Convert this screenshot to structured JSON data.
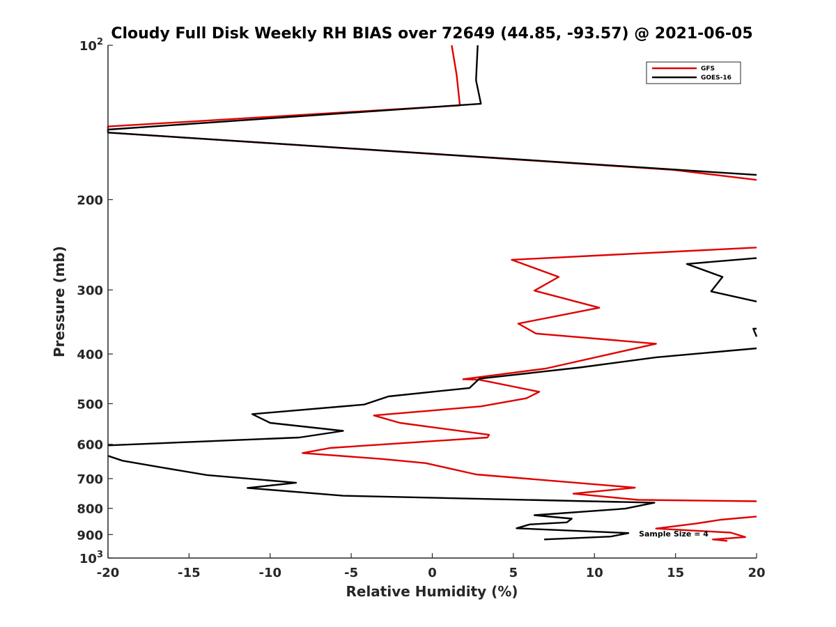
{
  "chart_data": {
    "type": "line",
    "title": "Cloudy Full Disk Weekly RH BIAS over 72649 (44.85, -93.57) @ 2021-06-05",
    "xlabel": "Relative Humidity (%)",
    "ylabel": "Pressure (mb)",
    "xlim": [
      -20,
      20
    ],
    "ylim": [
      100,
      1000
    ],
    "y_scale": "log",
    "y_reversed": true,
    "x_ticks": [
      "-20",
      "-15",
      "-10",
      "-5",
      "0",
      "5",
      "10",
      "15",
      "20"
    ],
    "y_ticks": [
      {
        "value": 100,
        "base": "10",
        "exp": "2"
      },
      {
        "value": 200,
        "label": "200"
      },
      {
        "value": 300,
        "label": "300"
      },
      {
        "value": 400,
        "label": "400"
      },
      {
        "value": 500,
        "label": "500"
      },
      {
        "value": 600,
        "label": "600"
      },
      {
        "value": 700,
        "label": "700"
      },
      {
        "value": 800,
        "label": "800"
      },
      {
        "value": 900,
        "label": "900"
      },
      {
        "value": 1000,
        "base": "10",
        "exp": "3"
      }
    ],
    "legend_position": "top-right",
    "annotation": "Sample Size = 4",
    "series": [
      {
        "name": "GFS",
        "color": "#e00000",
        "segments": [
          [
            [
              1.2,
              100
            ],
            [
              1.5,
              114
            ],
            [
              1.7,
              131
            ],
            [
              -20,
              144
            ],
            [
              -20,
              148
            ],
            [
              14.9,
              175
            ],
            [
              20,
              183
            ]
          ],
          [
            [
              20,
              248
            ],
            [
              4.9,
              262
            ],
            [
              7.8,
              283
            ],
            [
              6.3,
              301
            ],
            [
              10.3,
              325
            ],
            [
              5.3,
              349
            ],
            [
              6.4,
              365
            ],
            [
              13.8,
              382
            ],
            [
              7,
              427
            ],
            [
              1.9,
              448
            ],
            [
              2.9,
              449
            ],
            [
              6.6,
              474
            ],
            [
              5.8,
              488
            ],
            [
              3,
              506
            ],
            [
              -3.6,
              527
            ],
            [
              -2,
              545
            ],
            [
              3.5,
              575
            ],
            [
              3.4,
              582
            ],
            [
              -6.3,
              610
            ],
            [
              -8,
              624
            ],
            [
              -3.1,
              641
            ],
            [
              -0.4,
              653
            ],
            [
              2.7,
              687
            ],
            [
              12.5,
              729
            ],
            [
              8.7,
              749
            ],
            [
              12.7,
              770
            ],
            [
              20,
              775
            ]
          ],
          [
            [
              20,
              830
            ],
            [
              17.8,
              842
            ],
            [
              16.2,
              857
            ],
            [
              13.8,
              876
            ],
            [
              18.4,
              892
            ],
            [
              19.3,
              910
            ],
            [
              17.3,
              920
            ],
            [
              18.2,
              926
            ]
          ]
        ]
      },
      {
        "name": "GOES-16",
        "color": "#000000",
        "segments": [
          [
            [
              2.8,
              100
            ],
            [
              2.7,
              117
            ],
            [
              3,
              130
            ],
            [
              -20,
              146
            ],
            [
              -20,
              148
            ],
            [
              20,
              179
            ]
          ],
          [
            [
              20,
              260
            ],
            [
              15.7,
              267
            ],
            [
              17.9,
              283
            ],
            [
              17.2,
              302
            ],
            [
              20,
              316
            ]
          ],
          [
            [
              20,
              357
            ],
            [
              19.8,
              357
            ],
            [
              20,
              370
            ]
          ],
          [
            [
              20,
              390
            ],
            [
              13.8,
              406
            ],
            [
              9.1,
              425
            ],
            [
              2.9,
              447
            ],
            [
              2.3,
              466
            ],
            [
              -2.7,
              484
            ],
            [
              -4.2,
              502
            ],
            [
              -11.1,
              524
            ],
            [
              -10,
              545
            ],
            [
              -5.5,
              565
            ],
            [
              -8.2,
              582
            ],
            [
              -20,
              603
            ]
          ],
          [
            [
              -20,
              632
            ],
            [
              -19.1,
              646
            ],
            [
              -16.8,
              665
            ],
            [
              -13.9,
              689
            ],
            [
              -8.4,
              713
            ],
            [
              -11.4,
              730
            ],
            [
              -5.5,
              756
            ],
            [
              13.7,
              780
            ],
            [
              11.9,
              801
            ],
            [
              6.3,
              825
            ],
            [
              8.6,
              838
            ],
            [
              8.3,
              852
            ],
            [
              6,
              860
            ],
            [
              5.2,
              875
            ],
            [
              12.1,
              894
            ],
            [
              11,
              908
            ],
            [
              6.9,
              920
            ]
          ]
        ]
      }
    ]
  }
}
